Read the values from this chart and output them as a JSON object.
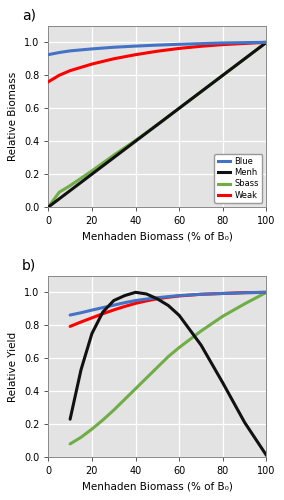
{
  "panel_a_label": "a)",
  "panel_b_label": "b)",
  "xlabel": "Menhaden Biomass (% of B₀)",
  "ylabel_a": "Relative Biomass",
  "ylabel_b": "Relative Yield",
  "xlim": [
    0,
    100
  ],
  "ylim_a": [
    0.0,
    1.1
  ],
  "ylim_b": [
    0.0,
    1.1
  ],
  "xticks": [
    0,
    20,
    40,
    60,
    80,
    100
  ],
  "yticks": [
    0.0,
    0.2,
    0.4,
    0.6,
    0.8,
    1.0
  ],
  "colors": {
    "Blue": "#4472C4",
    "Menh": "#111111",
    "Sbass": "#70AD47",
    "Weak": "#FF0000"
  },
  "line_width": 2.2,
  "background_color": "#E3E3E3",
  "grid_color": "#FFFFFF",
  "fig_background": "#FFFFFF",
  "panel_a": {
    "x": [
      0,
      5,
      10,
      20,
      30,
      40,
      50,
      60,
      70,
      80,
      90,
      100
    ],
    "Blue": [
      0.925,
      0.938,
      0.948,
      0.96,
      0.97,
      0.977,
      0.983,
      0.988,
      0.992,
      0.996,
      0.998,
      1.0
    ],
    "Menh": [
      0.0,
      0.05,
      0.1,
      0.2,
      0.3,
      0.4,
      0.5,
      0.6,
      0.7,
      0.8,
      0.9,
      1.0
    ],
    "Sbass": [
      0.0,
      0.09,
      0.13,
      0.22,
      0.315,
      0.405,
      0.5,
      0.6,
      0.7,
      0.8,
      0.9,
      1.0
    ],
    "Weak": [
      0.76,
      0.8,
      0.828,
      0.868,
      0.9,
      0.925,
      0.946,
      0.963,
      0.976,
      0.986,
      0.993,
      1.0
    ]
  },
  "panel_b": {
    "x": [
      10,
      15,
      20,
      25,
      30,
      35,
      40,
      45,
      50,
      55,
      60,
      70,
      80,
      90,
      100
    ],
    "Blue": [
      0.862,
      0.876,
      0.892,
      0.907,
      0.922,
      0.937,
      0.95,
      0.959,
      0.967,
      0.974,
      0.98,
      0.988,
      0.993,
      0.997,
      1.0
    ],
    "Menh": [
      0.23,
      0.53,
      0.75,
      0.88,
      0.95,
      0.98,
      1.0,
      0.99,
      0.96,
      0.92,
      0.86,
      0.68,
      0.45,
      0.21,
      0.01
    ],
    "Sbass": [
      0.08,
      0.12,
      0.17,
      0.225,
      0.285,
      0.35,
      0.415,
      0.48,
      0.545,
      0.61,
      0.665,
      0.765,
      0.855,
      0.93,
      1.0
    ],
    "Weak": [
      0.793,
      0.82,
      0.845,
      0.87,
      0.893,
      0.914,
      0.933,
      0.948,
      0.961,
      0.97,
      0.978,
      0.988,
      0.993,
      0.998,
      1.0
    ]
  }
}
